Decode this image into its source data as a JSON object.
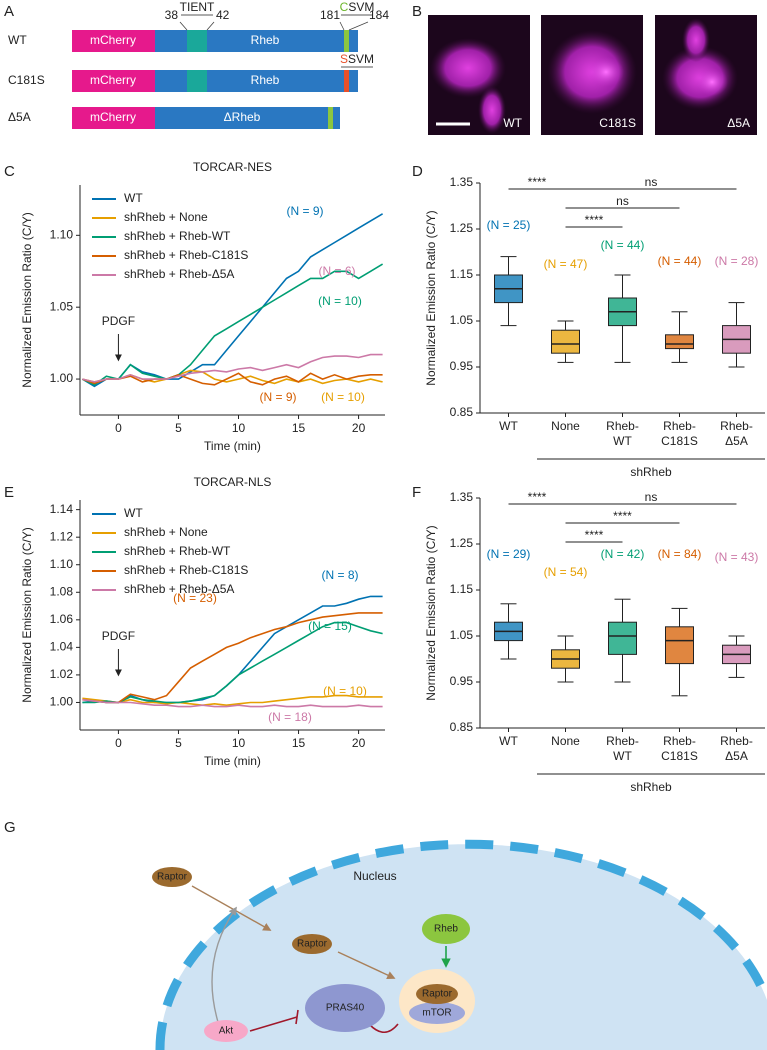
{
  "panel_labels": [
    "A",
    "B",
    "C",
    "D",
    "E",
    "F",
    "G"
  ],
  "panel_a": {
    "rows": [
      {
        "label": "WT",
        "tag": "mCherry",
        "protein": "Rheb"
      },
      {
        "label": "C181S",
        "tag": "mCherry",
        "protein": "Rheb",
        "motif": "SSVM"
      },
      {
        "label": "Δ5A",
        "tag": "mCherry",
        "protein": "ΔRheb"
      }
    ],
    "motif_n": {
      "start": "38",
      "name": "TIENT",
      "end": "42"
    },
    "motif_c": {
      "start": "181",
      "name": "CSVM",
      "end": "184"
    }
  },
  "panel_b": {
    "images": [
      "WT",
      "C181S",
      "Δ5A"
    ]
  },
  "chart_data": [
    {
      "type": "line",
      "title": "TORCAR-NES",
      "xlabel": "Time (min)",
      "ylabel": "Normalized Emission Ratio (C/Y)",
      "x": [
        -3,
        -2,
        -1,
        0,
        1,
        2,
        3,
        4,
        5,
        6,
        7,
        8,
        9,
        10,
        11,
        12,
        13,
        14,
        15,
        16,
        17,
        18,
        19,
        20,
        21,
        22
      ],
      "xlim": [
        -3.2,
        22.2
      ],
      "xticks": [
        0,
        5,
        10,
        15,
        20
      ],
      "ylim": [
        0.975,
        1.135
      ],
      "yticks": [
        {
          "value": 1,
          "label": "1.00"
        },
        1.05,
        {
          "value": 1.1,
          "label": "1.10"
        }
      ],
      "annotation": "PDGF",
      "legend": "upper left",
      "series": [
        {
          "name": "WT",
          "color": "#0072b2",
          "n_label": "(N = 9)",
          "values": [
            1,
            0.995,
            1,
            1,
            1.01,
            1.005,
            1.003,
            1,
            1,
            1.005,
            1.01,
            1.01,
            1.02,
            1.03,
            1.04,
            1.05,
            1.06,
            1.07,
            1.075,
            1.085,
            1.09,
            1.095,
            1.1,
            1.105,
            1.11,
            1.115
          ]
        },
        {
          "name": "shRheb + None",
          "color": "#e69f00",
          "n_label": "(N = 10)",
          "values": [
            1,
            0.998,
            1,
            1,
            1.003,
            1,
            0.998,
            1,
            1.003,
            1.006,
            1.005,
            1,
            0.998,
            1,
            1.002,
            0.999,
            0.997,
            1,
            0.998,
            1,
            0.997,
            0.999,
            1,
            0.998,
            1,
            0.998
          ]
        },
        {
          "name": "shRheb + Rheb-WT",
          "color": "#009e73",
          "n_label": "(N = 10)",
          "values": [
            1,
            0.996,
            1.002,
            1,
            1.01,
            1.004,
            1.002,
            1,
            1.003,
            1.01,
            1.02,
            1.03,
            1.035,
            1.04,
            1.045,
            1.05,
            1.055,
            1.06,
            1.065,
            1.07,
            1.07,
            1.075,
            1.075,
            1.07,
            1.075,
            1.08
          ]
        },
        {
          "name": "shRheb + Rheb-C181S",
          "color": "#d55e00",
          "n_label": "(N = 9)",
          "values": [
            1,
            0.997,
            1,
            1,
            1.002,
            0.998,
            1,
            1,
            1.003,
            1,
            0.997,
            0.996,
            1,
            1.004,
            0.998,
            0.996,
            1,
            1.002,
            0.998,
            1.004,
            1,
            1.003,
            1,
            1.002,
            1.003,
            1.003
          ]
        },
        {
          "name": "shRheb + Rheb-Δ5A",
          "color": "#cc79a7",
          "n_label": "(N = 6)",
          "values": [
            1,
            0.998,
            1,
            1,
            1.003,
            1,
            1,
            1,
            1.002,
            1.004,
            1.005,
            1.006,
            1.005,
            1.007,
            1.008,
            1.006,
            1.008,
            1.01,
            1.008,
            1.012,
            1.015,
            1.016,
            1.016,
            1.015,
            1.017,
            1.017
          ]
        }
      ]
    },
    {
      "type": "box",
      "ylabel": "Normalized Emission Ratio (C/Y)",
      "categories": [
        "WT",
        "None",
        "Rheb-WT",
        "Rheb-C181S",
        "Rheb-Δ5A"
      ],
      "colors": [
        "#0072b2",
        "#e69f00",
        "#009e73",
        "#d55e00",
        "#cc79a7"
      ],
      "n_labels": [
        "(N = 25)",
        "(N = 47)",
        "(N = 44)",
        "(N = 44)",
        "(N = 28)"
      ],
      "boxes": [
        {
          "min": 1.04,
          "q1": 1.09,
          "median": 1.12,
          "q3": 1.15,
          "max": 1.19
        },
        {
          "min": 0.96,
          "q1": 0.98,
          "median": 1.0,
          "q3": 1.03,
          "max": 1.05
        },
        {
          "min": 0.96,
          "q1": 1.04,
          "median": 1.07,
          "q3": 1.1,
          "max": 1.15
        },
        {
          "min": 0.96,
          "q1": 0.99,
          "median": 1.0,
          "q3": 1.02,
          "max": 1.07
        },
        {
          "min": 0.95,
          "q1": 0.98,
          "median": 1.01,
          "q3": 1.04,
          "max": 1.09
        }
      ],
      "ylim": [
        0.85,
        1.35
      ],
      "yticks": [
        0.85,
        0.95,
        1.05,
        1.15,
        1.25,
        1.35
      ],
      "significance": [
        {
          "pair": [
            "WT",
            "None"
          ],
          "label": "****"
        },
        {
          "pair": [
            "None",
            "Rheb-Δ5A"
          ],
          "label": "ns"
        },
        {
          "pair": [
            "None",
            "Rheb-C181S"
          ],
          "label": "ns"
        },
        {
          "pair": [
            "None",
            "Rheb-WT"
          ],
          "label": "****"
        }
      ],
      "group_label": "shRheb"
    },
    {
      "type": "line",
      "title": "TORCAR-NLS",
      "xlabel": "Time (min)",
      "ylabel": "Normalized Emission Ratio (C/Y)",
      "x": [
        -3,
        -2,
        -1,
        0,
        1,
        2,
        3,
        4,
        5,
        6,
        7,
        8,
        9,
        10,
        11,
        12,
        13,
        14,
        15,
        16,
        17,
        18,
        19,
        20,
        21,
        22
      ],
      "xlim": [
        -3.2,
        22.2
      ],
      "xticks": [
        0,
        5,
        10,
        15,
        20
      ],
      "ylim": [
        0.98,
        1.147
      ],
      "yticks": [
        {
          "value": 1,
          "label": "1.00"
        },
        1.02,
        1.04,
        1.06,
        1.08,
        {
          "value": 1.1,
          "label": "1.10"
        },
        1.12,
        1.14
      ],
      "annotation": "PDGF",
      "legend": "upper left",
      "series": [
        {
          "name": "WT",
          "color": "#0072b2",
          "n_label": "(N = 8)",
          "values": [
            1,
            1.001,
            1,
            1,
            1.005,
            1.002,
            1,
            1,
            1,
            1.001,
            1.002,
            1.005,
            1.012,
            1.02,
            1.03,
            1.04,
            1.05,
            1.055,
            1.06,
            1.065,
            1.07,
            1.07,
            1.072,
            1.075,
            1.077,
            1.077
          ]
        },
        {
          "name": "shRheb + None",
          "color": "#e69f00",
          "n_label": "(N = 10)",
          "values": [
            1.003,
            1.002,
            1.001,
            1,
            1.002,
            1,
            1,
            0.999,
            1,
            0.999,
            0.998,
            0.999,
            0.998,
            0.999,
            1,
            1,
            1.001,
            1.002,
            1.003,
            1.004,
            1.004,
            1.005,
            1.005,
            1.004,
            1.004,
            1.004
          ]
        },
        {
          "name": "shRheb + Rheb-WT",
          "color": "#009e73",
          "n_label": "(N = 15)",
          "values": [
            1,
            1,
            1.001,
            1,
            1.004,
            1.002,
            1.001,
            1,
            1,
            1.001,
            1.003,
            1.005,
            1.012,
            1.02,
            1.025,
            1.03,
            1.035,
            1.04,
            1.045,
            1.05,
            1.055,
            1.058,
            1.058,
            1.055,
            1.052,
            1.05
          ]
        },
        {
          "name": "shRheb + Rheb-C181S",
          "color": "#d55e00",
          "n_label": "(N = 23)",
          "values": [
            1.002,
            1.001,
            1,
            1,
            1.006,
            1.004,
            1.002,
            1.005,
            1.015,
            1.025,
            1.03,
            1.035,
            1.04,
            1.043,
            1.047,
            1.05,
            1.053,
            1.055,
            1.058,
            1.06,
            1.062,
            1.063,
            1.064,
            1.065,
            1.065,
            1.065
          ]
        },
        {
          "name": "shRheb + Rheb-Δ5A",
          "color": "#cc79a7",
          "n_label": "(N = 18)",
          "values": [
            1.002,
            1.001,
            1,
            1,
            1,
            0.999,
            0.998,
            0.998,
            0.997,
            0.997,
            0.998,
            0.997,
            0.997,
            0.998,
            0.997,
            0.997,
            0.998,
            0.997,
            0.997,
            0.998,
            0.997,
            0.997,
            0.997,
            0.998,
            0.997,
            0.997
          ]
        }
      ]
    },
    {
      "type": "box",
      "ylabel": "Normalized Emission Ratio (C/Y)",
      "categories": [
        "WT",
        "None",
        "Rheb-WT",
        "Rheb-C181S",
        "Rheb-Δ5A"
      ],
      "colors": [
        "#0072b2",
        "#e69f00",
        "#009e73",
        "#d55e00",
        "#cc79a7"
      ],
      "n_labels": [
        "(N = 29)",
        "(N = 54)",
        "(N = 42)",
        "(N = 84)",
        "(N = 43)"
      ],
      "boxes": [
        {
          "min": 1.0,
          "q1": 1.04,
          "median": 1.06,
          "q3": 1.08,
          "max": 1.12
        },
        {
          "min": 0.95,
          "q1": 0.98,
          "median": 1.0,
          "q3": 1.02,
          "max": 1.05
        },
        {
          "min": 0.95,
          "q1": 1.01,
          "median": 1.05,
          "q3": 1.08,
          "max": 1.13
        },
        {
          "min": 0.92,
          "q1": 0.99,
          "median": 1.04,
          "q3": 1.07,
          "max": 1.11
        },
        {
          "min": 0.96,
          "q1": 0.99,
          "median": 1.01,
          "q3": 1.03,
          "max": 1.05
        }
      ],
      "ylim": [
        0.85,
        1.35
      ],
      "yticks": [
        0.85,
        0.95,
        1.05,
        1.15,
        1.25,
        1.35
      ],
      "significance": [
        {
          "pair": [
            "WT",
            "None"
          ],
          "label": "****"
        },
        {
          "pair": [
            "None",
            "Rheb-Δ5A"
          ],
          "label": "ns"
        },
        {
          "pair": [
            "None",
            "Rheb-C181S"
          ],
          "label": "****"
        },
        {
          "pair": [
            "None",
            "Rheb-WT"
          ],
          "label": "****"
        }
      ],
      "group_label": "shRheb"
    }
  ],
  "panel_g": {
    "compartment": "Nucleus",
    "nodes": [
      "Raptor",
      "Raptor",
      "Rheb",
      "Raptor",
      "mTOR",
      "PRAS40",
      "Akt"
    ]
  }
}
